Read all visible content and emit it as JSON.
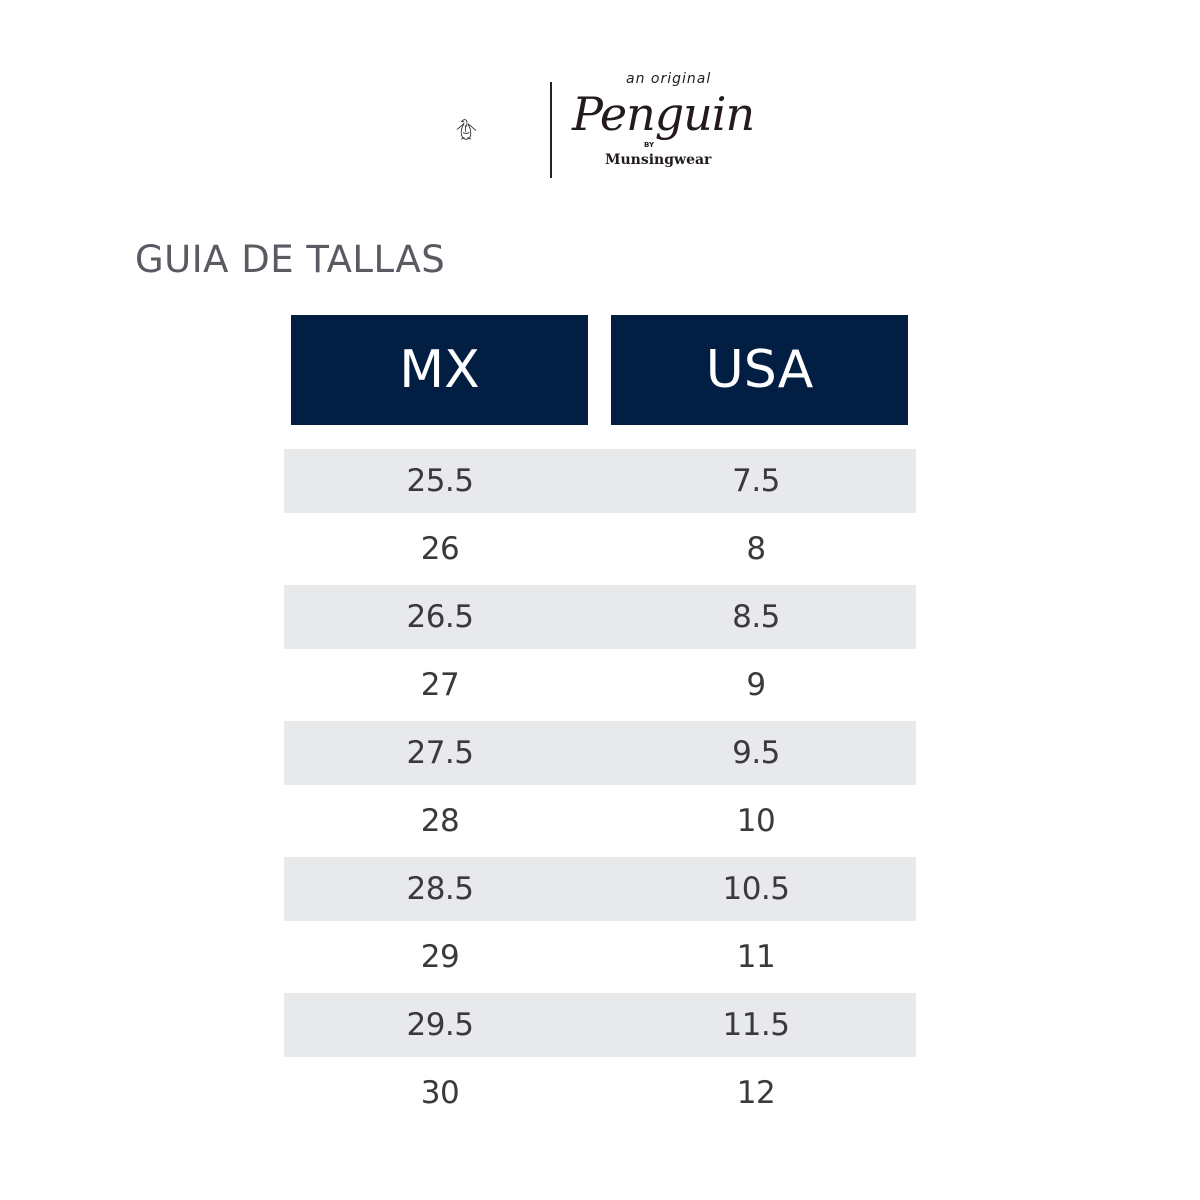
{
  "logo": {
    "tagline": "an original",
    "brand": "Penguin",
    "by": "BY",
    "maker": "Munsingwear"
  },
  "title": "GUIA DE TALLAS",
  "table": {
    "headers": [
      "MX",
      "USA"
    ],
    "header_color": "#021e42",
    "stripe_color": "#e8e9eb",
    "rows": [
      [
        "25.5",
        "7.5"
      ],
      [
        "26",
        "8"
      ],
      [
        "26.5",
        "8.5"
      ],
      [
        "27",
        "9"
      ],
      [
        "27.5",
        "9.5"
      ],
      [
        "28",
        "10"
      ],
      [
        "28.5",
        "10.5"
      ],
      [
        "29",
        "11"
      ],
      [
        "29.5",
        "11.5"
      ],
      [
        "30",
        "12"
      ]
    ]
  }
}
